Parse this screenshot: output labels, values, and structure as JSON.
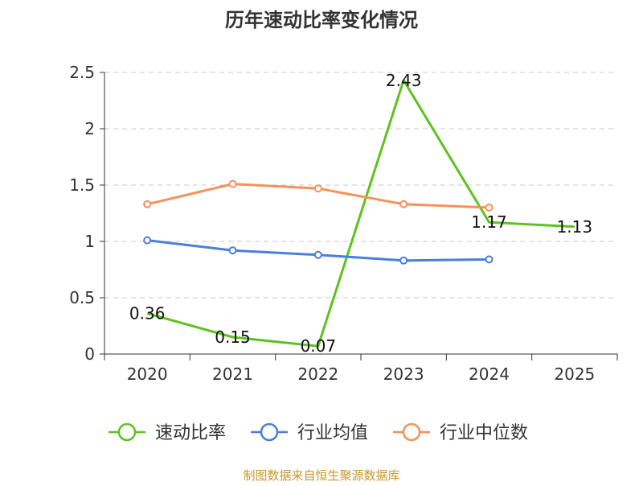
{
  "chart_data": {
    "type": "line",
    "title": "历年速动比率变化情况",
    "categories": [
      "2020",
      "2021",
      "2022",
      "2023",
      "2024",
      "2025"
    ],
    "ylim": [
      0,
      2.5
    ],
    "yticks": [
      "0",
      "0.5",
      "1",
      "1.5",
      "2",
      "2.5"
    ],
    "yticks_values": [
      0,
      0.5,
      1,
      1.5,
      2,
      2.5
    ],
    "grid": true,
    "legend_position": "bottom",
    "series": [
      {
        "name": "速动比率",
        "color": "#5dc21e",
        "values": [
          0.36,
          0.15,
          0.07,
          2.43,
          1.17,
          1.13
        ],
        "labels": [
          "0.36",
          "0.15",
          "0.07",
          "2.43",
          "1.17",
          "1.13"
        ],
        "show_points": false
      },
      {
        "name": "行业均值",
        "color": "#4a7fdc",
        "values": [
          1.01,
          0.92,
          0.88,
          0.83,
          0.84,
          null
        ],
        "show_points": true
      },
      {
        "name": "行业中位数",
        "color": "#f7905a",
        "values": [
          1.33,
          1.51,
          1.47,
          1.33,
          1.3,
          null
        ],
        "show_points": true
      }
    ]
  },
  "footer": {
    "source": "制图数据来自恒生聚源数据库",
    "color": "#c8962b"
  }
}
